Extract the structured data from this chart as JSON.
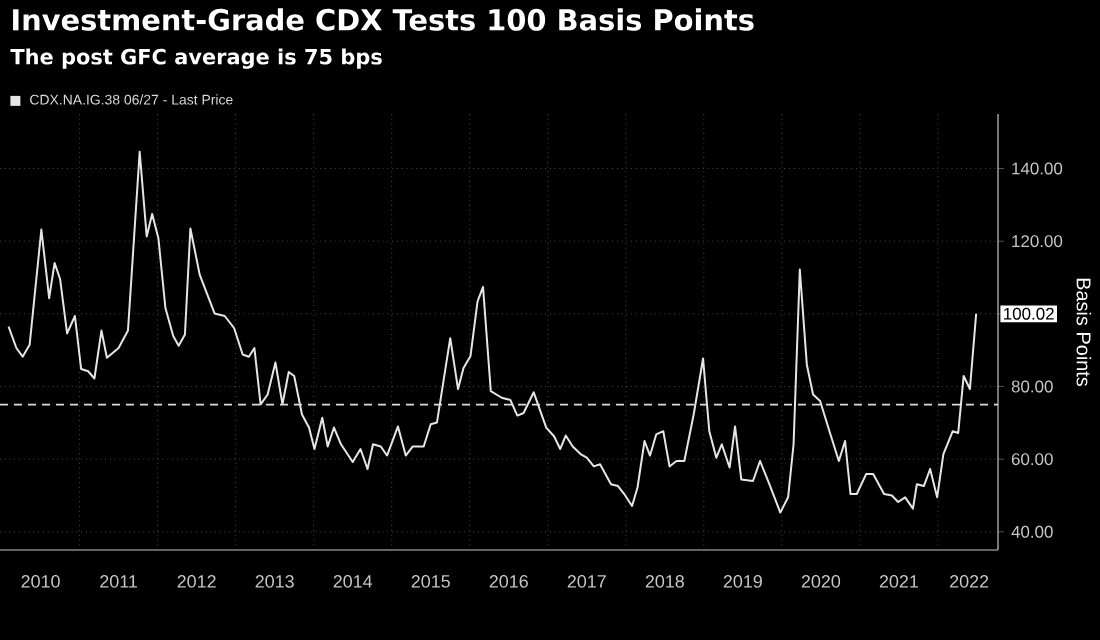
{
  "chart_data": {
    "type": "line",
    "title": "Investment-Grade CDX Tests 100 Basis Points",
    "subtitle": "The post GFC average is 75 bps",
    "ylabel": "Basis Points",
    "xlim": [
      2009.98,
      2022.77
    ],
    "ylim": [
      35,
      155
    ],
    "xticks": [
      {
        "value": 2010.5,
        "label": "2010"
      },
      {
        "value": 2011,
        "label": null
      },
      {
        "value": 2011.5,
        "label": "2011"
      },
      {
        "value": 2012,
        "label": null
      },
      {
        "value": 2012.5,
        "label": "2012"
      },
      {
        "value": 2013,
        "label": null
      },
      {
        "value": 2013.5,
        "label": "2013"
      },
      {
        "value": 2014,
        "label": null
      },
      {
        "value": 2014.5,
        "label": "2014"
      },
      {
        "value": 2015,
        "label": null
      },
      {
        "value": 2015.5,
        "label": "2015"
      },
      {
        "value": 2016,
        "label": null
      },
      {
        "value": 2016.5,
        "label": "2016"
      },
      {
        "value": 2017,
        "label": null
      },
      {
        "value": 2017.5,
        "label": "2017"
      },
      {
        "value": 2018,
        "label": null
      },
      {
        "value": 2018.5,
        "label": "2018"
      },
      {
        "value": 2019,
        "label": null
      },
      {
        "value": 2019.5,
        "label": "2019"
      },
      {
        "value": 2020,
        "label": null
      },
      {
        "value": 2020.5,
        "label": "2020"
      },
      {
        "value": 2021,
        "label": null
      },
      {
        "value": 2021.5,
        "label": "2021"
      },
      {
        "value": 2022,
        "label": null
      },
      {
        "value": 2022.4,
        "label": "2022"
      }
    ],
    "yticks": [
      {
        "value": 40,
        "label": "40.00"
      },
      {
        "value": 60,
        "label": "60.00"
      },
      {
        "value": 80,
        "label": "80.00"
      },
      {
        "value": 100,
        "label": null
      },
      {
        "value": 120,
        "label": "120.00"
      },
      {
        "value": 140,
        "label": "140.00"
      }
    ],
    "grid": true,
    "legend": "top left",
    "ref_lines": [
      {
        "axis": "y",
        "value": 75,
        "color": "#dcdcdc",
        "line_style": "dashed"
      }
    ],
    "annotations": [
      "100.02"
    ],
    "series": [
      {
        "name": "CDX.NA.IG.38 06/27 - Last Price",
        "color": "#e6e6e6",
        "x": [
          2010.09,
          2010.19,
          2010.27,
          2010.36,
          2010.51,
          2010.61,
          2010.68,
          2010.75,
          2010.84,
          2010.94,
          2011.02,
          2011.11,
          2011.19,
          2011.28,
          2011.35,
          2011.5,
          2011.62,
          2011.77,
          2011.86,
          2011.93,
          2012.01,
          2012.1,
          2012.2,
          2012.27,
          2012.35,
          2012.42,
          2012.54,
          2012.73,
          2012.86,
          2012.98,
          2013.09,
          2013.17,
          2013.24,
          2013.32,
          2013.41,
          2013.51,
          2013.6,
          2013.68,
          2013.75,
          2013.85,
          2013.94,
          2014.01,
          2014.11,
          2014.18,
          2014.26,
          2014.35,
          2014.5,
          2014.6,
          2014.69,
          2014.76,
          2014.86,
          2014.94,
          2015.08,
          2015.18,
          2015.27,
          2015.41,
          2015.5,
          2015.58,
          2015.75,
          2015.85,
          2015.92,
          2016.01,
          2016.1,
          2016.17,
          2016.27,
          2016.41,
          2016.52,
          2016.61,
          2016.69,
          2016.82,
          2016.98,
          2017.08,
          2017.16,
          2017.23,
          2017.32,
          2017.42,
          2017.5,
          2017.59,
          2017.67,
          2017.81,
          2017.9,
          2017.98,
          2018.08,
          2018.15,
          2018.24,
          2018.31,
          2018.39,
          2018.48,
          2018.56,
          2018.65,
          2018.75,
          2018.87,
          2018.99,
          2019.07,
          2019.16,
          2019.23,
          2019.33,
          2019.4,
          2019.48,
          2019.63,
          2019.72,
          2019.84,
          2019.98,
          2020.08,
          2020.15,
          2020.23,
          2020.32,
          2020.4,
          2020.49,
          2020.61,
          2020.73,
          2020.81,
          2020.88,
          2020.96,
          2021.08,
          2021.17,
          2021.31,
          2021.41,
          2021.49,
          2021.58,
          2021.68,
          2021.73,
          2021.82,
          2021.9,
          2021.99,
          2022.07,
          2022.19,
          2022.26,
          2022.33,
          2022.41,
          2022.49
        ],
        "values": [
          96.5,
          90.6,
          88.2,
          91.5,
          123.2,
          104.3,
          114.0,
          109.6,
          94.6,
          99.4,
          84.8,
          84.2,
          82.2,
          95.4,
          87.9,
          90.6,
          95.4,
          144.6,
          121.3,
          127.5,
          120.8,
          101.6,
          93.9,
          91.2,
          94.3,
          123.5,
          110.7,
          100.1,
          99.4,
          96.1,
          88.8,
          88.2,
          90.6,
          75.1,
          77.8,
          86.6,
          75.1,
          84.0,
          82.9,
          72.3,
          68.7,
          62.8,
          71.4,
          63.5,
          68.7,
          64.1,
          59.2,
          62.8,
          57.3,
          64.1,
          63.5,
          61.0,
          69.0,
          61.0,
          63.5,
          63.5,
          69.6,
          70.1,
          93.3,
          79.3,
          85.1,
          88.4,
          103.4,
          107.4,
          78.7,
          76.9,
          76.3,
          72.0,
          72.7,
          78.4,
          68.7,
          66.3,
          62.8,
          66.5,
          63.5,
          61.4,
          60.4,
          58.0,
          58.6,
          53.1,
          52.6,
          50.4,
          47.1,
          52.2,
          65.0,
          61.0,
          66.8,
          67.7,
          58.0,
          59.5,
          59.5,
          72.3,
          87.7,
          67.7,
          60.4,
          64.1,
          57.7,
          69.0,
          54.4,
          54.0,
          59.5,
          53.1,
          45.3,
          49.5,
          64.1,
          112.2,
          86.0,
          77.8,
          76.0,
          67.7,
          59.5,
          65.0,
          50.4,
          50.4,
          55.9,
          55.9,
          50.4,
          50.0,
          48.2,
          49.5,
          46.4,
          53.1,
          52.6,
          57.3,
          49.5,
          61.4,
          67.7,
          67.2,
          82.9,
          79.3,
          100.02
        ]
      }
    ]
  }
}
